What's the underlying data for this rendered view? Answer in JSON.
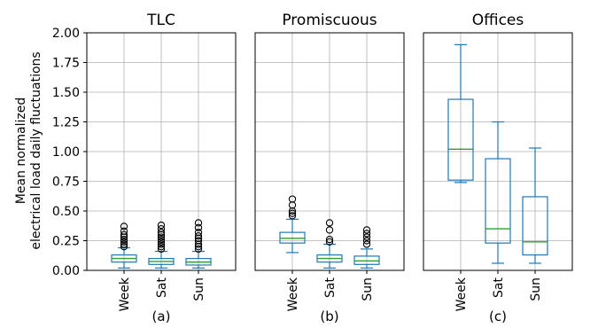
{
  "ylabel_lines": [
    "Mean normalized",
    "electrical load daily fluctuations"
  ],
  "y_ticks": [
    "0.00",
    "0.25",
    "0.50",
    "0.75",
    "1.00",
    "1.25",
    "1.50",
    "1.75",
    "2.00"
  ],
  "colors": {
    "box": "#1f77b4",
    "median": "#2ca02c",
    "flier": "#000000",
    "grid": "#b0b0b0"
  },
  "chart_data": [
    {
      "type": "box",
      "title": "TLC",
      "sublabel": "(a)",
      "ylim": [
        0,
        2.0
      ],
      "grid": true,
      "categories": [
        "Week",
        "Sat",
        "Sun"
      ],
      "boxes": [
        {
          "whislo": 0.02,
          "q1": 0.07,
          "med": 0.1,
          "q3": 0.13,
          "whishi": 0.19,
          "fliers": [
            0.2,
            0.22,
            0.24,
            0.26,
            0.28,
            0.3,
            0.33,
            0.37
          ]
        },
        {
          "whislo": 0.02,
          "q1": 0.05,
          "med": 0.075,
          "q3": 0.1,
          "whishi": 0.16,
          "fliers": [
            0.18,
            0.2,
            0.22,
            0.24,
            0.26,
            0.28,
            0.3,
            0.32,
            0.35,
            0.38
          ]
        },
        {
          "whislo": 0.02,
          "q1": 0.045,
          "med": 0.07,
          "q3": 0.1,
          "whishi": 0.16,
          "fliers": [
            0.18,
            0.2,
            0.22,
            0.25,
            0.27,
            0.29,
            0.32,
            0.36,
            0.4
          ]
        }
      ]
    },
    {
      "type": "box",
      "title": "Promiscuous",
      "sublabel": "(b)",
      "ylim": [
        0,
        2.0
      ],
      "grid": true,
      "categories": [
        "Week",
        "Sat",
        "Sun"
      ],
      "boxes": [
        {
          "whislo": 0.15,
          "q1": 0.23,
          "med": 0.27,
          "q3": 0.32,
          "whishi": 0.43,
          "fliers": [
            0.46,
            0.48,
            0.5,
            0.55,
            0.6
          ]
        },
        {
          "whislo": 0.02,
          "q1": 0.07,
          "med": 0.1,
          "q3": 0.13,
          "whishi": 0.22,
          "fliers": [
            0.24,
            0.26,
            0.34,
            0.4
          ]
        },
        {
          "whislo": 0.02,
          "q1": 0.05,
          "med": 0.08,
          "q3": 0.12,
          "whishi": 0.18,
          "fliers": [
            0.22,
            0.25,
            0.28,
            0.31,
            0.34
          ]
        }
      ]
    },
    {
      "type": "box",
      "title": "Offices",
      "sublabel": "(c)",
      "ylim": [
        0,
        2.0
      ],
      "grid": true,
      "categories": [
        "Week",
        "Sat",
        "Sun"
      ],
      "boxes": [
        {
          "whislo": 0.74,
          "q1": 0.76,
          "med": 1.02,
          "q3": 1.44,
          "whishi": 1.9,
          "fliers": []
        },
        {
          "whislo": 0.06,
          "q1": 0.23,
          "med": 0.35,
          "q3": 0.94,
          "whishi": 1.25,
          "fliers": []
        },
        {
          "whislo": 0.06,
          "q1": 0.13,
          "med": 0.24,
          "q3": 0.62,
          "whishi": 1.03,
          "fliers": []
        }
      ]
    }
  ]
}
